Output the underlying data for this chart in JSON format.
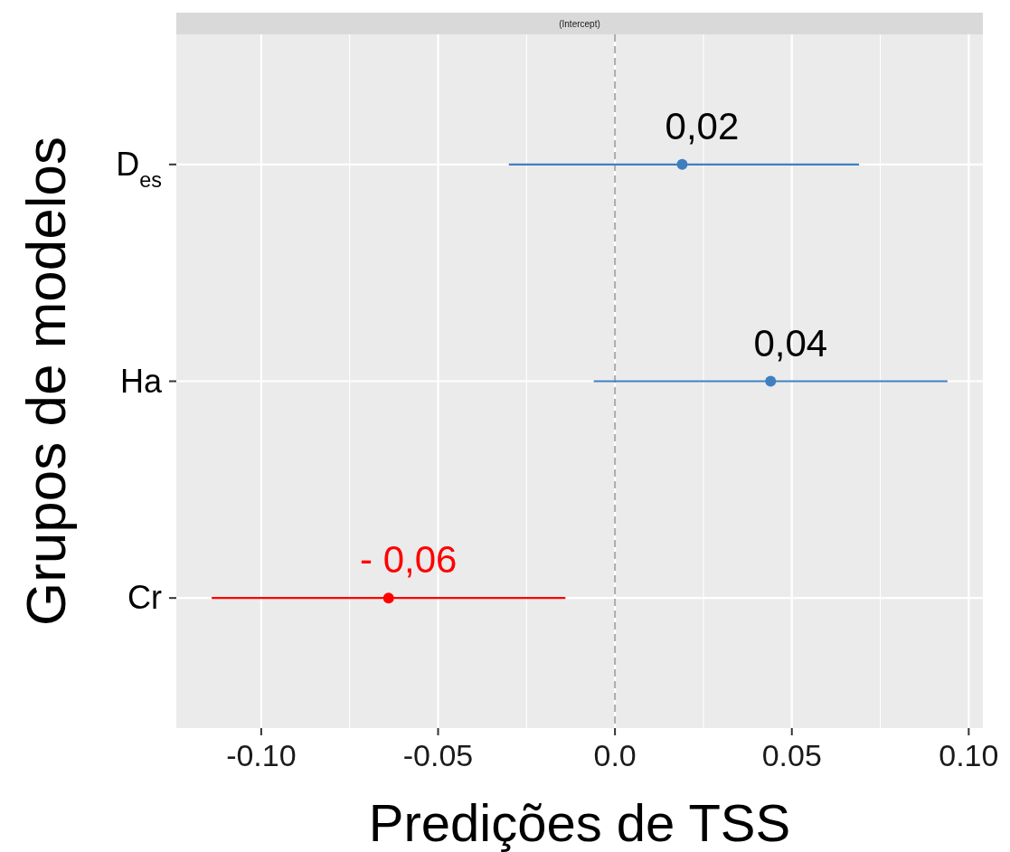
{
  "chart_data": {
    "type": "scatter",
    "orientation": "horizontal",
    "subtitle": "(Intercept)",
    "xlabel": "Predições de TSS",
    "ylabel": "Grupos de modelos",
    "categories": [
      "D$_{es}$",
      "Ha",
      "Cr"
    ],
    "values": [
      0.019,
      0.044,
      -0.064
    ],
    "errors": [
      [
        -0.03,
        0.069
      ],
      [
        -0.006,
        0.094
      ],
      [
        -0.114,
        -0.014
      ]
    ],
    "colors": [
      "#3f7fbf",
      "#3f7fbf",
      "#ff0000"
    ],
    "value_labels": [
      "0,02",
      "0,04",
      "- 0,06"
    ],
    "xlim": [
      -0.124,
      0.104
    ],
    "xticks": [
      {
        "value": -0.1,
        "label": "-0.10"
      },
      {
        "value": -0.05,
        "label": "-0.05"
      },
      {
        "value": 0,
        "label": "0.0"
      },
      {
        "value": 0.05,
        "label": "0.05"
      },
      {
        "value": 0.1,
        "label": "0.10"
      }
    ],
    "ref_lines": [
      {
        "axis": "x",
        "value": 0,
        "color": "#aaaaaa",
        "line_style": "dashed"
      }
    ],
    "grid": true,
    "marker": "circle"
  }
}
